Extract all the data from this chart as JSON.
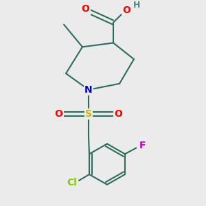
{
  "background_color": "#ebebeb",
  "bond_color": "#2d6b5e",
  "bond_width": 1.5,
  "atom_colors": {
    "O": "#ff0000",
    "N": "#0000cc",
    "S": "#cccc00",
    "F": "#cc00cc",
    "Cl": "#88cc00",
    "C": "#000000",
    "H": "#4a8a8a"
  },
  "font_size": 10
}
